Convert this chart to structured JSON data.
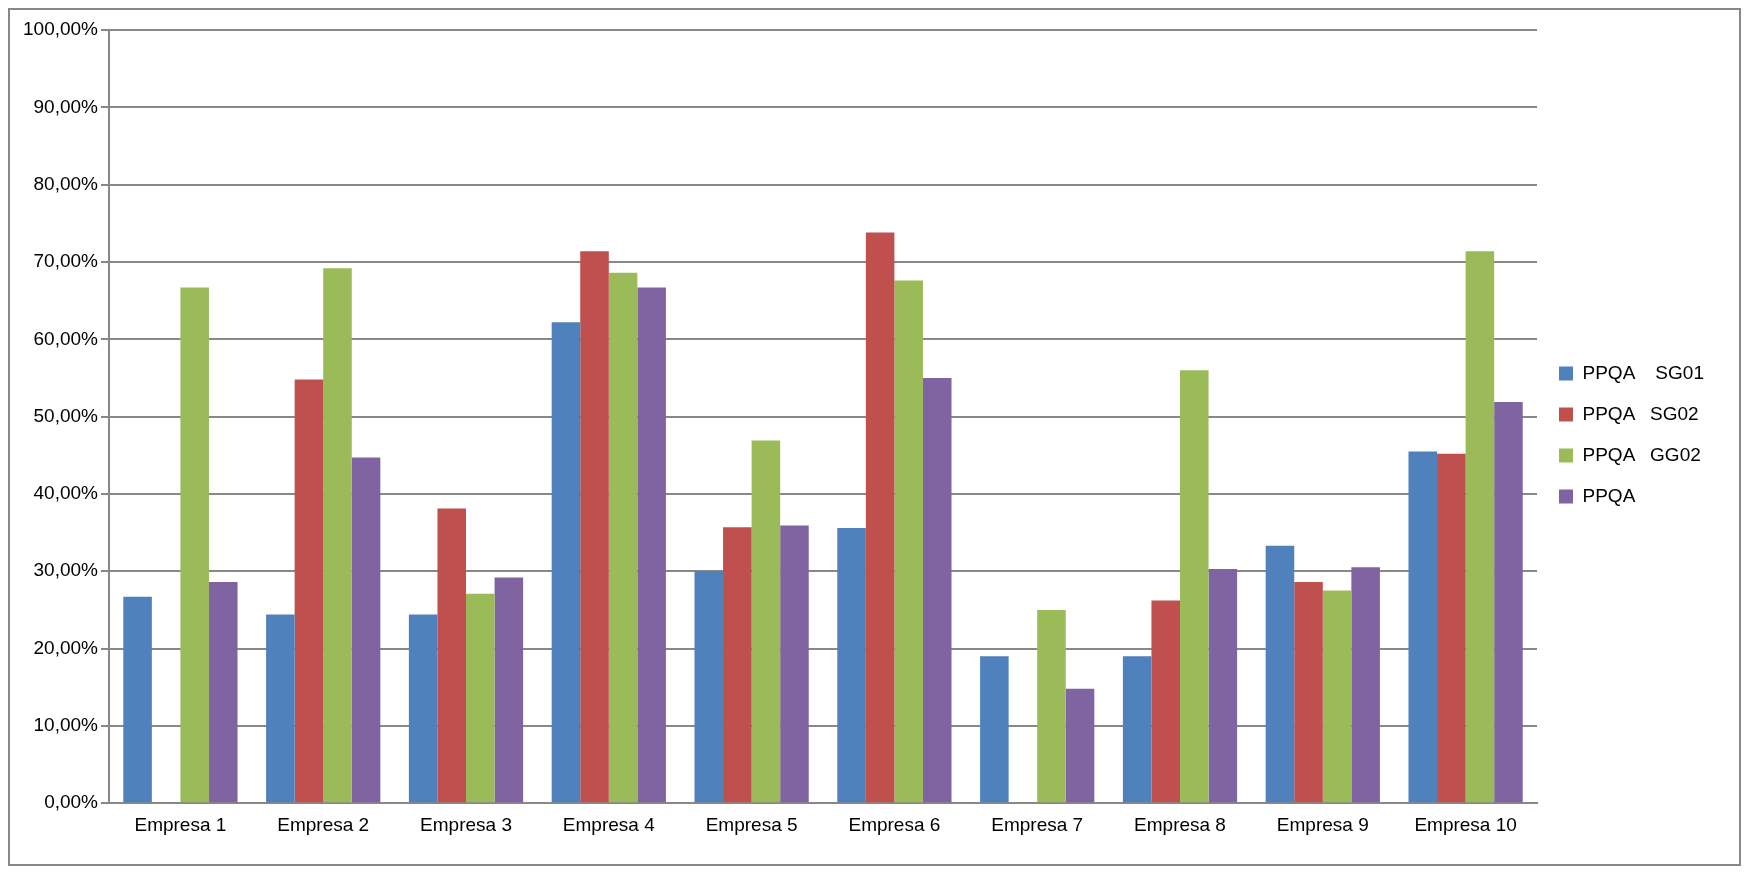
{
  "chart_data": {
    "type": "bar",
    "categories": [
      "Empresa 1",
      "Empresa 2",
      "Empresa 3",
      "Empresa 4",
      "Empresa 5",
      "Empresa 6",
      "Empresa 7",
      "Empresa 8",
      "Empresa 9",
      "Empresa 10"
    ],
    "series": [
      {
        "name": "PPQA    SG01",
        "color": "#4f81bd",
        "values": [
          26.7,
          24.4,
          24.4,
          62.2,
          30.0,
          35.6,
          19.0,
          19.0,
          33.3,
          45.5
        ]
      },
      {
        "name": "PPQA   SG02",
        "color": "#c0504d",
        "values": [
          0,
          54.8,
          38.1,
          71.4,
          35.7,
          73.8,
          0,
          26.2,
          28.6,
          45.2
        ]
      },
      {
        "name": "PPQA   GG02",
        "color": "#9bbb59",
        "values": [
          66.7,
          69.2,
          27.1,
          68.6,
          46.9,
          67.6,
          25.0,
          56.0,
          27.5,
          71.4
        ]
      },
      {
        "name": "PPQA",
        "color": "#8064a2",
        "values": [
          28.6,
          44.7,
          29.2,
          66.7,
          35.9,
          55.0,
          14.8,
          30.3,
          30.5,
          51.9
        ]
      }
    ],
    "ylim": [
      0,
      100
    ],
    "yticks": [
      {
        "value": 0,
        "label": "0,00%"
      },
      {
        "value": 10,
        "label": "10,00%"
      },
      {
        "value": 20,
        "label": "20,00%"
      },
      {
        "value": 30,
        "label": "30,00%"
      },
      {
        "value": 40,
        "label": "40,00%"
      },
      {
        "value": 50,
        "label": "50,00%"
      },
      {
        "value": 60,
        "label": "60,00%"
      },
      {
        "value": 70,
        "label": "70,00%"
      },
      {
        "value": 80,
        "label": "80,00%"
      },
      {
        "value": 90,
        "label": "90,00%"
      },
      {
        "value": 100,
        "label": "100,00%"
      }
    ],
    "grid": "y",
    "legend": "right"
  }
}
